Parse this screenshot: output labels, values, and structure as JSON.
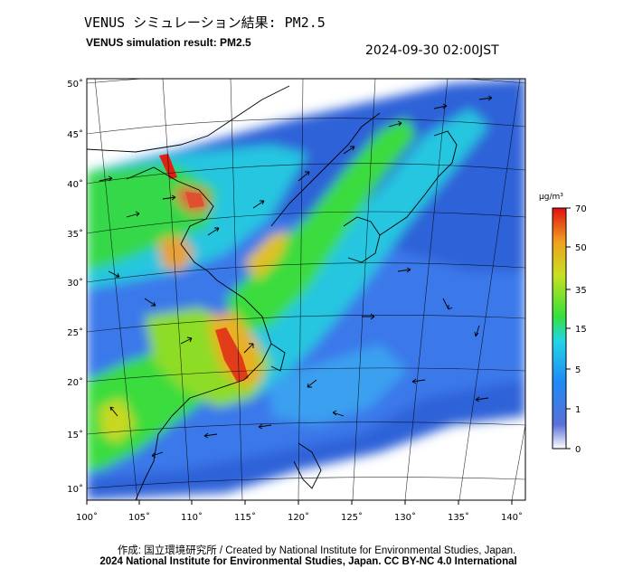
{
  "header": {
    "title_jp": "VENUS シミュレーション結果: PM2.5",
    "title_en": "VENUS simulation result: PM2.5",
    "timestamp": "2024-09-30 02:00JST"
  },
  "map": {
    "lon_ticks": [
      "100˚",
      "105˚",
      "110˚",
      "115˚",
      "120˚",
      "125˚",
      "130˚",
      "135˚",
      "140˚"
    ],
    "lat_ticks": [
      "50˚",
      "45˚",
      "40˚",
      "35˚",
      "30˚",
      "25˚",
      "20˚",
      "15˚",
      "10˚"
    ]
  },
  "colorbar": {
    "unit": "μg/m³",
    "ticks": [
      "70",
      "50",
      "35",
      "15",
      "5",
      "1",
      "0"
    ],
    "colors": {
      "c0": "#ffffff",
      "c1": "#3a5bd6",
      "c2": "#1f8bf5",
      "c3": "#22d6e6",
      "c4": "#34e03c",
      "c5": "#c8e020",
      "c6": "#f0a020",
      "c7": "#e01010"
    }
  },
  "footer": {
    "credit_line1": "作成: 国立環境研究所 / Created by National Institute for Environmental Studies, Japan.",
    "credit_line2": "2024 National Institute for Environmental Studies, Japan. CC BY-NC 4.0 International"
  }
}
